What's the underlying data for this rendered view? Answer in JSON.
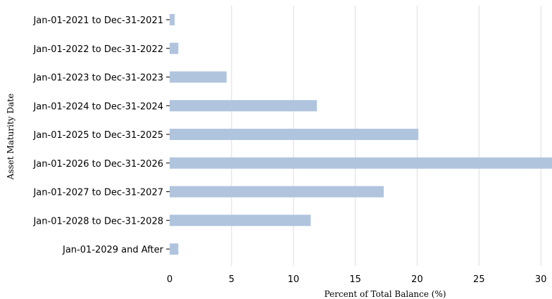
{
  "chart_data": {
    "type": "bar",
    "orientation": "horizontal",
    "title": "",
    "xlabel": "Percent of Total Balance (%)",
    "ylabel": "Asset Maturity Date",
    "categories": [
      "Jan-01-2021  to  Dec-31-2021",
      "Jan-01-2022  to  Dec-31-2022",
      "Jan-01-2023  to  Dec-31-2023",
      "Jan-01-2024  to  Dec-31-2024",
      "Jan-01-2025  to  Dec-31-2025",
      "Jan-01-2026  to  Dec-31-2026",
      "Jan-01-2027  to  Dec-31-2027",
      "Jan-01-2028  to  Dec-31-2028",
      "Jan-01-2029 and After"
    ],
    "values": [
      0.4,
      0.7,
      4.6,
      11.9,
      20.1,
      30.9,
      17.3,
      11.4,
      0.7
    ],
    "xlim": [
      0,
      30.9
    ],
    "xticks": [
      "0",
      "5",
      "10",
      "15",
      "20",
      "25",
      "30"
    ],
    "xtick_values": [
      0,
      5,
      10,
      15,
      20,
      25,
      30
    ],
    "grid": "vertical",
    "bar_color": "#b0c4de"
  }
}
